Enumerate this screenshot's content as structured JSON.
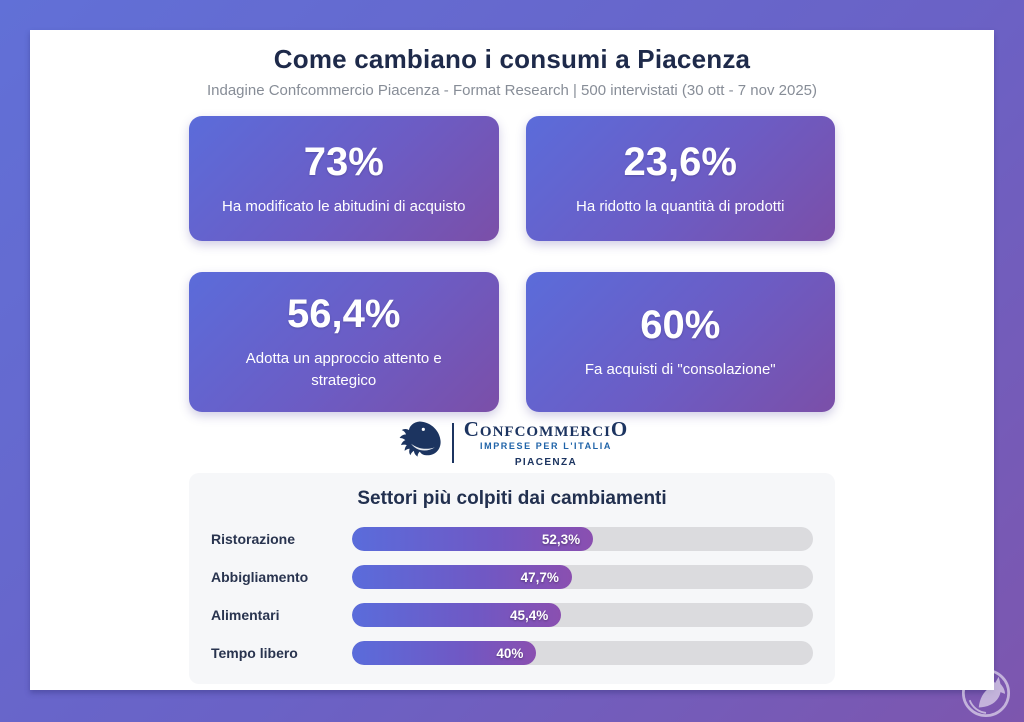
{
  "page": {
    "title": "Come cambiano i consumi a Piacenza",
    "subtitle": "Indagine Confcommercio Piacenza - Format Research | 500 intervistati (30 ott - 7 nov 2025)"
  },
  "stats": [
    {
      "value": "73%",
      "label": "Ha modificato le abitudini di acquisto"
    },
    {
      "value": "23,6%",
      "label": "Ha ridotto la quantità di prodotti"
    },
    {
      "value": "56,4%",
      "label": "Adotta un approccio attento e strategico"
    },
    {
      "value": "60%",
      "label": "Fa acquisti di \"consolazione\""
    }
  ],
  "logo": {
    "name": "ConfcommerciO",
    "tagline": "IMPRESE PER L'ITALIA",
    "city": "PIACENZA"
  },
  "chart_data": {
    "type": "bar",
    "orientation": "horizontal",
    "title": "Settori più colpiti dai cambiamenti",
    "categories": [
      "Ristorazione",
      "Abbigliamento",
      "Alimentari",
      "Tempo libero"
    ],
    "values": [
      52.3,
      47.7,
      45.4,
      40
    ],
    "value_labels": [
      "52,3%",
      "47,7%",
      "45,4%",
      "40%"
    ],
    "xlim": [
      0,
      100
    ],
    "grid": false,
    "legend": "none",
    "track_color": "#dbdbde",
    "bar_gradient": [
      "#5a6cdb",
      "#8a4fb0"
    ]
  },
  "colors": {
    "frame_gradient_start": "#6170d7",
    "frame_gradient_end": "#7d56ae",
    "card_gradient_start": "#5b6cda",
    "card_gradient_end": "#7b4fa8",
    "title_navy": "#1e2a4a",
    "subtitle_gray": "#878d97",
    "logo_navy": "#1c3460",
    "logo_blue": "#1f63a8",
    "panel_bg": "#f6f7f9"
  },
  "icons": {
    "eagle": "confcommercio-eagle-icon",
    "watermark": "horse-emblem-watermark-icon"
  }
}
